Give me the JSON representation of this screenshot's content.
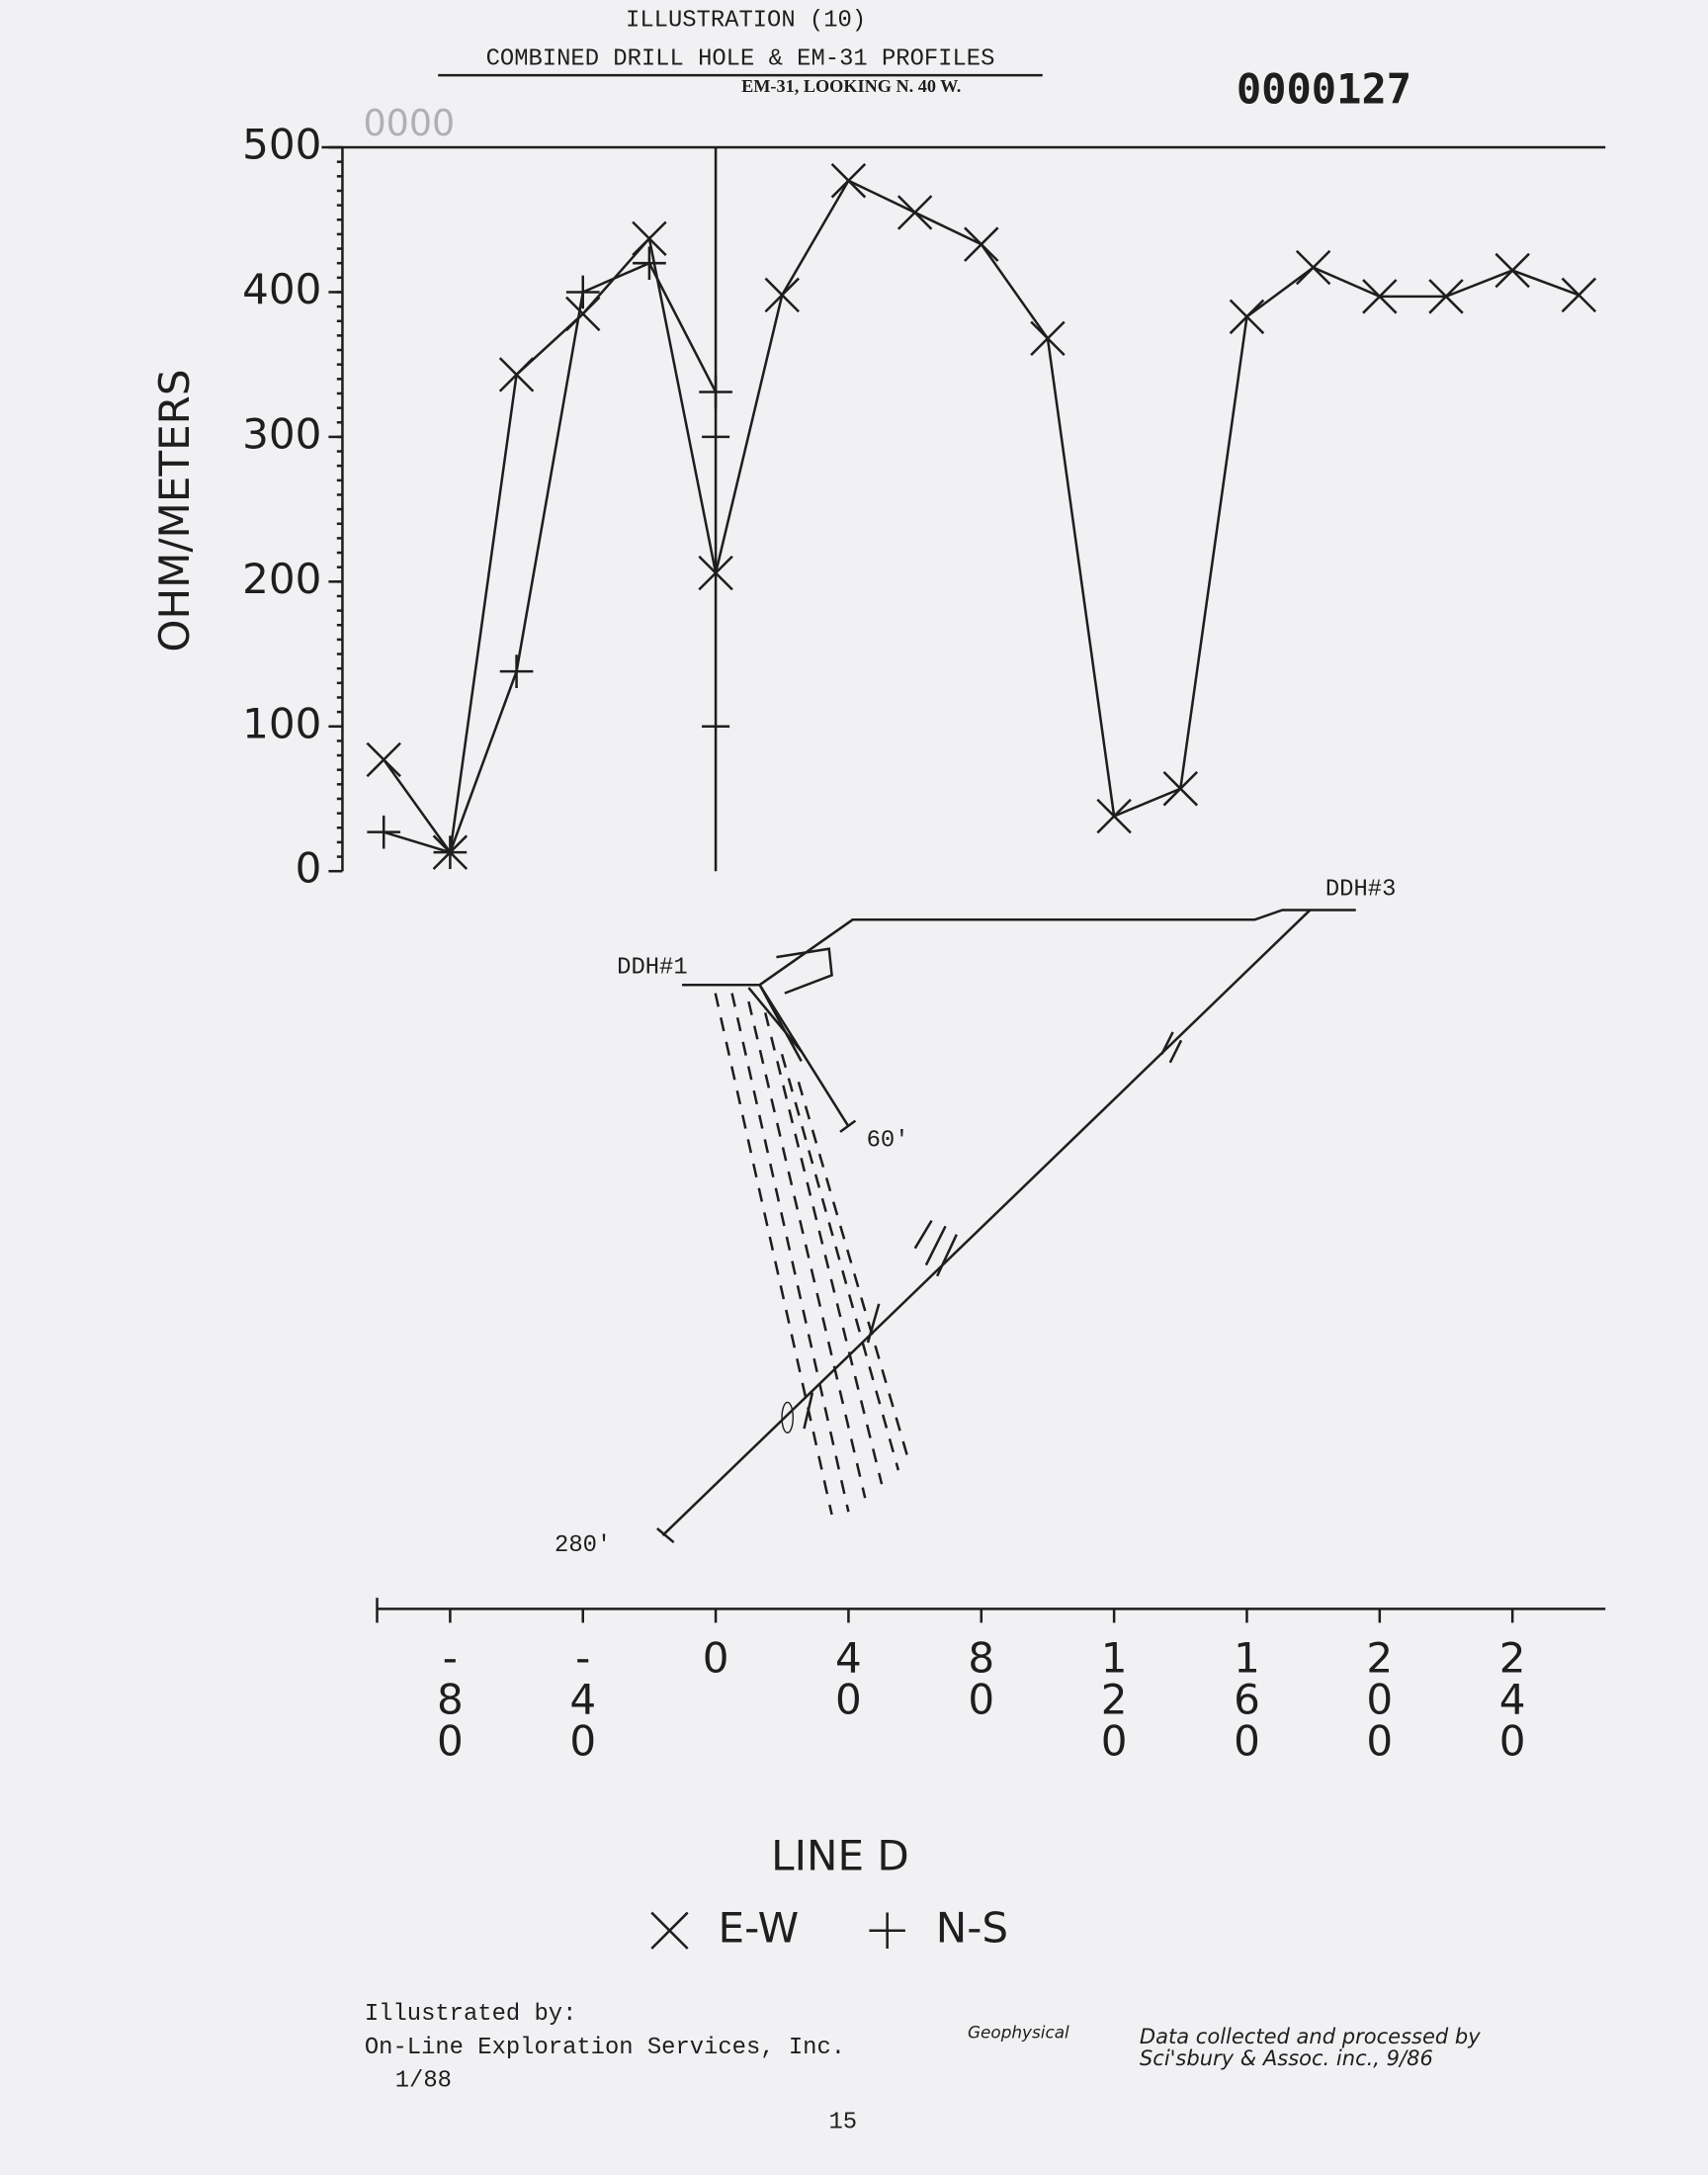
{
  "header": {
    "title": "ILLUSTRATION (10)",
    "subtitle": "COMBINED DRILL HOLE & EM-31 PROFILES",
    "note": "EM-31, LOOKING N. 40 W.",
    "doc_number": "0000127",
    "faint_stamp": "0000"
  },
  "chart_data": {
    "type": "line",
    "y_label": "OHM/METERS",
    "x_label": "LINE D",
    "x": [
      -100,
      -80,
      -60,
      -40,
      -20,
      0,
      20,
      40,
      60,
      80,
      100,
      120,
      140,
      160,
      180,
      200,
      220,
      240,
      260
    ],
    "series": [
      {
        "name": "E-W",
        "marker": "x",
        "color": "#1e1e1e",
        "values": [
          77,
          13,
          343,
          385,
          437,
          206,
          398,
          477,
          455,
          433,
          368,
          38,
          57,
          383,
          417,
          397,
          397,
          415,
          398
        ]
      },
      {
        "name": "N-S",
        "marker": "+",
        "color": "#1e1e1e",
        "values": [
          27,
          13,
          138,
          400,
          420,
          331,
          null,
          null,
          null,
          null,
          null,
          null,
          null,
          null,
          null,
          null,
          null,
          null,
          null
        ]
      }
    ],
    "xlim": [
      -102,
      268
    ],
    "xticks": [
      -80,
      -40,
      0,
      40,
      80,
      120,
      160,
      200,
      240
    ],
    "ylim": [
      0,
      500
    ],
    "yticks": [
      0,
      100,
      200,
      300,
      400,
      500
    ]
  },
  "diagram": {
    "hole_1": "DDH#1",
    "hole_1_depth": "60'",
    "hole_3": "DDH#3",
    "hole_3_depth": "280'"
  },
  "footer": {
    "credit_label": "Illustrated by:",
    "credit_company": "On-Line Exploration Services, Inc.",
    "credit_date": "1/88",
    "geophysical": "Geophysical",
    "data_note": "Data collected and processed by",
    "data_company": "Sci'sbury & Assoc. inc., 9/86",
    "page_number": "15"
  }
}
